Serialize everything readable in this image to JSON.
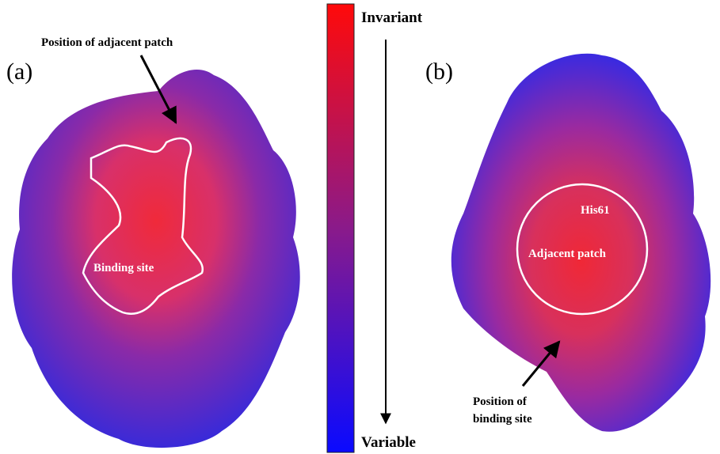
{
  "panels": {
    "a": {
      "label": "(a)",
      "annotation": "Position of adjacent patch",
      "region_label": "Binding site"
    },
    "b": {
      "label": "(b)",
      "residue_label": "His61",
      "region_label": "Adjacent patch",
      "annotation": [
        "Position of",
        "binding site"
      ]
    }
  },
  "colorbar": {
    "top_label": "Invariant",
    "bottom_label": "Variable"
  }
}
